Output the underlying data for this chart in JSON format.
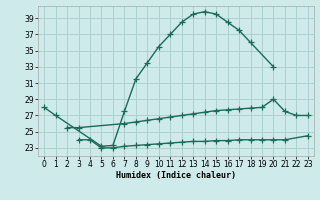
{
  "xlabel": "Humidex (Indice chaleur)",
  "bg_color": "#ceeaea",
  "grid_color": "#aacccc",
  "line_color": "#1a6b5a",
  "xlim": [
    -0.5,
    23.5
  ],
  "ylim": [
    22.0,
    40.5
  ],
  "yticks": [
    23,
    25,
    27,
    29,
    31,
    33,
    35,
    37,
    39
  ],
  "xticks": [
    0,
    1,
    2,
    3,
    4,
    5,
    6,
    7,
    8,
    9,
    10,
    11,
    12,
    13,
    14,
    15,
    16,
    17,
    18,
    19,
    20,
    21,
    22,
    23
  ],
  "line1_x": [
    0,
    1,
    5,
    6,
    7,
    8,
    9,
    10,
    11,
    12,
    13,
    14,
    15,
    16,
    17,
    18,
    20
  ],
  "line1_y": [
    28.0,
    27.0,
    23.2,
    23.3,
    27.5,
    31.5,
    33.5,
    35.5,
    37.0,
    38.5,
    39.5,
    39.8,
    39.5,
    38.5,
    37.5,
    36.0,
    33.0
  ],
  "line2_x": [
    2,
    3,
    7,
    8,
    9,
    10,
    11,
    12,
    13,
    14,
    15,
    16,
    17,
    18,
    19,
    20,
    21,
    22,
    23
  ],
  "line2_y": [
    25.5,
    25.5,
    26.0,
    26.2,
    26.4,
    26.6,
    26.8,
    27.0,
    27.2,
    27.4,
    27.6,
    27.7,
    27.8,
    27.9,
    28.0,
    29.0,
    27.5,
    27.0,
    27.0
  ],
  "line3_x": [
    3,
    4,
    5,
    6,
    7,
    8,
    9,
    10,
    11,
    12,
    13,
    14,
    15,
    16,
    17,
    18,
    19,
    20,
    21,
    23
  ],
  "line3_y": [
    24.0,
    24.0,
    23.0,
    23.0,
    23.2,
    23.3,
    23.4,
    23.5,
    23.6,
    23.7,
    23.8,
    23.8,
    23.9,
    23.9,
    24.0,
    24.0,
    24.0,
    24.0,
    24.0,
    24.5
  ],
  "line_width": 1.0,
  "marker_size": 4.0
}
